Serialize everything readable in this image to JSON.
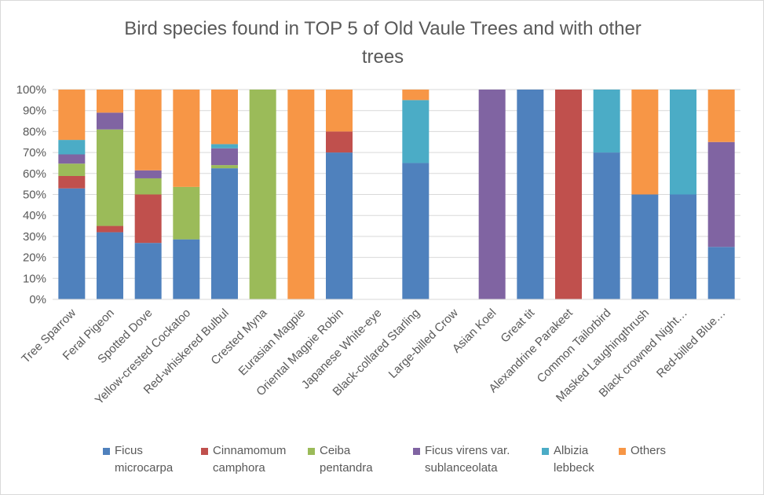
{
  "chart_data": {
    "type": "bar",
    "stacked": true,
    "percent": true,
    "title": "Bird species found in TOP 5 of Old Vaule Trees and with other trees",
    "title_lines": [
      "Bird species found in TOP 5 of Old Vaule Trees and with other",
      "trees"
    ],
    "xlabel": "",
    "ylabel": "",
    "ylim": [
      0,
      100
    ],
    "yticks": [
      "0%",
      "10%",
      "20%",
      "30%",
      "40%",
      "50%",
      "60%",
      "70%",
      "80%",
      "90%",
      "100%"
    ],
    "grid": true,
    "legend_position": "bottom",
    "categories": [
      "Tree Sparrow",
      "Feral Pigeon",
      "Spotted Dove",
      "Yellow-crested Cockatoo",
      "Red-whiskered Bulbul",
      "Crested Myna",
      "Eurasian Magpie",
      "Oriental Magpie Robin",
      "Japanese White-eye",
      "Black-collared Starling",
      "Large-billed Crow",
      "Asian Koel",
      "Great tit",
      "Alexandrine Parakeet",
      "Common Tailorbird",
      "Masked Laughingthrush",
      "Black crowned Night…",
      "Red-billed Blue…"
    ],
    "series": [
      {
        "name": "Ficus microcarpa",
        "legend_lines": "Ficus\nmicrocarpa",
        "color": "#4f81bd",
        "values": [
          52.9,
          32,
          26.9,
          28.6,
          62.5,
          0,
          0,
          70,
          0,
          65,
          0,
          0,
          100,
          0,
          70,
          50,
          50,
          25
        ]
      },
      {
        "name": "Cinnamomum camphora",
        "legend_lines": "Cinnamomum\ncamphora",
        "color": "#c0504d",
        "values": [
          5.9,
          3,
          23.1,
          0,
          0,
          0,
          0,
          10,
          0,
          0,
          0,
          0,
          0,
          100,
          0,
          0,
          0,
          0
        ]
      },
      {
        "name": "Ceiba pentandra",
        "legend_lines": "Ceiba\npentandra",
        "color": "#9bbb59",
        "values": [
          5.9,
          46,
          7.7,
          25,
          1.5,
          100,
          0,
          0,
          0,
          0,
          0,
          0,
          0,
          0,
          0,
          0,
          0,
          0
        ]
      },
      {
        "name": "Ficus virens var. sublanceolata",
        "legend_lines": "Ficus virens var.\nsublanceolata",
        "color": "#8064a2",
        "values": [
          4.4,
          8,
          3.8,
          0,
          8,
          0,
          0,
          0,
          0,
          0,
          0,
          100,
          0,
          0,
          0,
          0,
          0,
          50
        ]
      },
      {
        "name": "Albizia lebbeck",
        "legend_lines": "Albizia\nlebbeck",
        "color": "#4bacc6",
        "values": [
          6.9,
          0,
          0,
          0,
          2,
          0,
          0,
          0,
          0,
          30,
          0,
          0,
          0,
          0,
          30,
          0,
          50,
          0
        ]
      },
      {
        "name": "Others",
        "legend_lines": "Others",
        "color": "#f79646",
        "values": [
          24,
          11,
          38.5,
          46.4,
          26,
          0,
          100,
          20,
          0,
          5,
          0,
          0,
          0,
          0,
          0,
          50,
          0,
          25
        ]
      }
    ]
  }
}
